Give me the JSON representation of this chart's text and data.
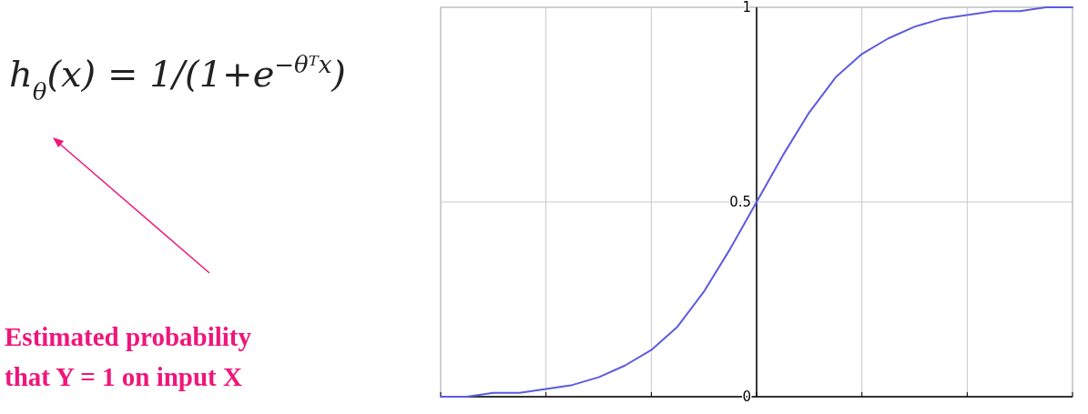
{
  "chart_data": {
    "type": "line",
    "categories": [
      null,
      null,
      null,
      null,
      null,
      null,
      null,
      null,
      null,
      null,
      null,
      null,
      null,
      null,
      null,
      null,
      null,
      null,
      null,
      null,
      null,
      null,
      null,
      null,
      null
    ],
    "series": [
      {
        "color": "#5b5be0",
        "values": [
          0,
          0,
          0.01,
          0.01,
          0.02,
          0.03,
          0.05,
          0.08,
          0.12,
          0.18,
          0.27,
          0.38,
          0.5,
          0.62,
          0.73,
          0.82,
          0.88,
          0.92,
          0.95,
          0.97,
          0.98,
          0.99,
          0.99,
          1,
          1
        ]
      }
    ],
    "ylim": [
      0,
      1
    ],
    "yticks": [
      0,
      0.5,
      1
    ],
    "grid": true,
    "annotations": [
      "h$_{θ}$(x) = 1/(1+e$^{−θᵀx}$)",
      "Estimated probability\nthat Y = 1 on input  X"
    ]
  }
}
